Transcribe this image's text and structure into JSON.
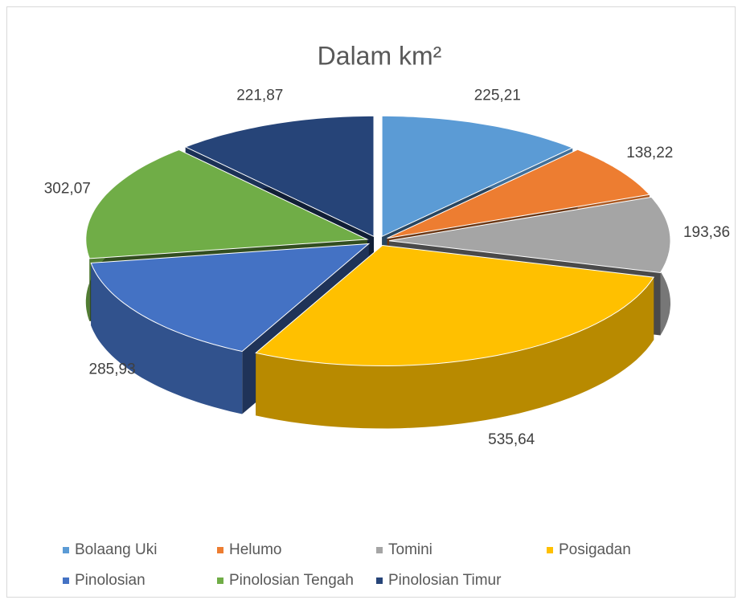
{
  "chart_data": {
    "type": "pie3d",
    "title": "Dalam km²",
    "categories": [
      "Bolaang Uki",
      "Helumo",
      "Tomini",
      "Posigadan",
      "Pinolosian",
      "Pinolosian Tengah",
      "Pinolosian Timur"
    ],
    "values": [
      225.21,
      138.22,
      193.36,
      535.64,
      285.93,
      302.07,
      221.87
    ],
    "value_labels": [
      "225,21",
      "138,22",
      "193,36",
      "535,64",
      "285,93",
      "302,07",
      "221,87"
    ],
    "colors": [
      "#5b9bd5",
      "#ed7d31",
      "#a5a5a5",
      "#ffc000",
      "#4472c4",
      "#70ad47",
      "#264478"
    ],
    "legend": "bottom"
  }
}
